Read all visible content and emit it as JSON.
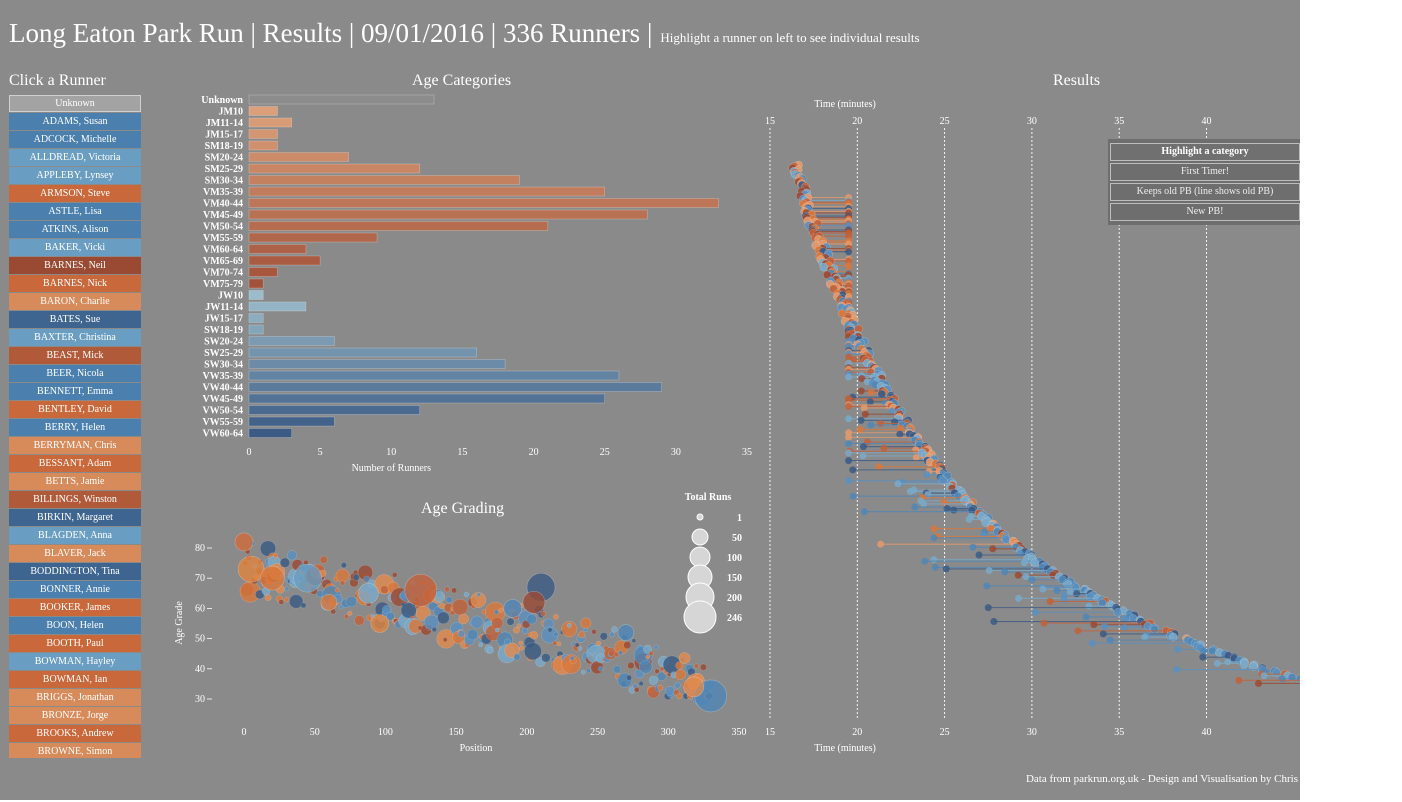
{
  "header": {
    "title": "Long Eaton Park Run | Results | 09/01/2016 | 336 Runners |",
    "subtitle": "Highlight a runner on left to see individual results"
  },
  "sidebar": {
    "title": "Click a Runner",
    "runners": [
      {
        "name": "Unknown",
        "color": "#a3a3a3"
      },
      {
        "name": "ADAMS, Susan",
        "color": "#4a7fae"
      },
      {
        "name": "ADCOCK, Michelle",
        "color": "#4a7fae"
      },
      {
        "name": "ALLDREAD, Victoria",
        "color": "#6a9dc2"
      },
      {
        "name": "APPLEBY, Lynsey",
        "color": "#6a9dc2"
      },
      {
        "name": "ARMSON, Steve",
        "color": "#c9683a"
      },
      {
        "name": "ASTLE, Lisa",
        "color": "#4a7fae"
      },
      {
        "name": "ATKINS, Alison",
        "color": "#4a7fae"
      },
      {
        "name": "BAKER, Vicki",
        "color": "#6a9dc2"
      },
      {
        "name": "BARNES, Neil",
        "color": "#9a4a33"
      },
      {
        "name": "BARNES, Nick",
        "color": "#c9683a"
      },
      {
        "name": "BARON, Charlie",
        "color": "#d78a5a"
      },
      {
        "name": "BATES, Sue",
        "color": "#3e6590"
      },
      {
        "name": "BAXTER, Christina",
        "color": "#6a9dc2"
      },
      {
        "name": "BEAST, Mick",
        "color": "#b05a3a"
      },
      {
        "name": "BEER, Nicola",
        "color": "#4a7fae"
      },
      {
        "name": "BENNETT, Emma",
        "color": "#4a7fae"
      },
      {
        "name": "BENTLEY, David",
        "color": "#c9683a"
      },
      {
        "name": "BERRY, Helen",
        "color": "#4a7fae"
      },
      {
        "name": "BERRYMAN, Chris",
        "color": "#d78a5a"
      },
      {
        "name": "BESSANT, Adam",
        "color": "#c9683a"
      },
      {
        "name": "BETTS, Jamie",
        "color": "#d78a5a"
      },
      {
        "name": "BILLINGS, Winston",
        "color": "#b05a3a"
      },
      {
        "name": "BIRKIN, Margaret",
        "color": "#3e6590"
      },
      {
        "name": "BLAGDEN, Anna",
        "color": "#6a9dc2"
      },
      {
        "name": "BLAVER, Jack",
        "color": "#d78a5a"
      },
      {
        "name": "BODDINGTON, Tina",
        "color": "#3e6590"
      },
      {
        "name": "BONNER, Annie",
        "color": "#4a7fae"
      },
      {
        "name": "BOOKER, James",
        "color": "#c9683a"
      },
      {
        "name": "BOON, Helen",
        "color": "#4a7fae"
      },
      {
        "name": "BOOTH, Paul",
        "color": "#c9683a"
      },
      {
        "name": "BOWMAN, Hayley",
        "color": "#6a9dc2"
      },
      {
        "name": "BOWMAN, Ian",
        "color": "#c9683a"
      },
      {
        "name": "BRIGGS, Jonathan",
        "color": "#d78a5a"
      },
      {
        "name": "BRONZE, Jorge",
        "color": "#d78a5a"
      },
      {
        "name": "BROOKS, Andrew",
        "color": "#c9683a"
      },
      {
        "name": "BROWNE, Simon",
        "color": "#d78a5a"
      }
    ]
  },
  "age_categories": {
    "title": "Age Categories",
    "xlabel": "Number of Runners",
    "ticks": [
      0,
      5,
      10,
      15,
      20,
      25,
      30,
      35
    ]
  },
  "age_grading": {
    "title": "Age Grading",
    "xlabel": "Position",
    "ylabel": "Age Grade",
    "xticks": [
      0,
      50,
      100,
      150,
      200,
      250,
      300,
      350
    ],
    "yticks": [
      "80",
      "70",
      "60",
      "50",
      "40",
      "30"
    ]
  },
  "total_runs_legend": {
    "title": "Total Runs",
    "items": [
      "1",
      "50",
      "100",
      "150",
      "200",
      "246"
    ]
  },
  "results": {
    "title": "Results",
    "axis_label_top": "Time (minutes)",
    "axis_label_bottom": "Time (minutes)",
    "ticks": [
      "15",
      "20",
      "25",
      "30",
      "35",
      "40"
    ]
  },
  "category_box": {
    "header": "Highlight a category",
    "buttons": [
      "First Timer!",
      "Keeps old PB (line shows old PB)",
      "New PB!"
    ]
  },
  "footer": "Data from parkrun.org.uk - Design and Visualisation by Chris",
  "colors": {
    "background": "#8a8a8a",
    "male_light": "#dba07a",
    "male_dark": "#a2523a",
    "female_light": "#9cbccb",
    "female_dark": "#3b5a84",
    "unknown": "#8c8c8c"
  },
  "chart_data": [
    {
      "type": "bar",
      "orientation": "horizontal",
      "title": "Age Categories",
      "xlabel": "Number of Runners",
      "xlim": [
        0,
        35
      ],
      "categories": [
        "Unknown",
        "JM10",
        "JM11-14",
        "JM15-17",
        "SM18-19",
        "SM20-24",
        "SM25-29",
        "SM30-34",
        "VM35-39",
        "VM40-44",
        "VM45-49",
        "VM50-54",
        "VM55-59",
        "VM60-64",
        "VM65-69",
        "VM70-74",
        "VM75-79",
        "JW10",
        "JW11-14",
        "JW15-17",
        "SW18-19",
        "SW20-24",
        "SW25-29",
        "SW30-34",
        "VW35-39",
        "VW40-44",
        "VW45-49",
        "VW50-54",
        "VW55-59",
        "VW60-64"
      ],
      "values": [
        13,
        2,
        3,
        2,
        2,
        7,
        12,
        19,
        25,
        33,
        28,
        21,
        9,
        4,
        5,
        2,
        1,
        1,
        4,
        1,
        1,
        6,
        16,
        18,
        26,
        29,
        25,
        12,
        6,
        3
      ]
    },
    {
      "type": "scatter",
      "title": "Age Grading",
      "xlabel": "Position",
      "ylabel": "Age Grade",
      "xlim": [
        0,
        350
      ],
      "ylim": [
        28,
        84
      ]
    },
    {
      "type": "scatter",
      "title": "Results",
      "xlabel": "Time (minutes)",
      "xlim": [
        15,
        43
      ],
      "runners": 336
    }
  ]
}
